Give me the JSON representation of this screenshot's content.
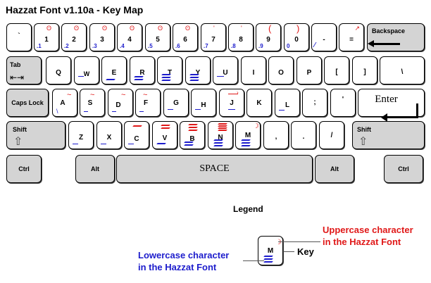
{
  "title": "Hazzat Font v1.10a - Key Map",
  "rows": {
    "number": [
      {
        "label": "`",
        "lower": "",
        "upper": ""
      },
      {
        "label": "1",
        "lower": ".1",
        "upper": "ʘ"
      },
      {
        "label": "2",
        "lower": ".2",
        "upper": "ʘ"
      },
      {
        "label": "3",
        "lower": ".3",
        "upper": "ʘ"
      },
      {
        "label": "4",
        "lower": ".4",
        "upper": "ʘ"
      },
      {
        "label": "5",
        "lower": ".5",
        "upper": "ʘ"
      },
      {
        "label": "6",
        "lower": ".6",
        "upper": "ʘ"
      },
      {
        "label": "7",
        "lower": ".7",
        "upper": "ʹ"
      },
      {
        "label": "8",
        "lower": ".8",
        "upper": "ʹ"
      },
      {
        "label": "9",
        "lower": ".9",
        "upper": "("
      },
      {
        "label": "0",
        "lower": "0",
        "upper": ")"
      },
      {
        "label": "-",
        "lower": "⁄",
        "upper": ""
      },
      {
        "label": "=",
        "lower": "",
        "upper": "↗"
      }
    ],
    "qwerty": [
      "Q",
      "W",
      "E",
      "R",
      "T",
      "Y",
      "U",
      "I",
      "O",
      "P",
      "[",
      "]",
      "\\"
    ],
    "home": [
      "A",
      "S",
      "D",
      "F",
      "G",
      "H",
      "J",
      "K",
      "L",
      ";",
      "'"
    ],
    "bottom": [
      "Z",
      "X",
      "C",
      "V",
      "B",
      "N",
      "M",
      ",",
      ".",
      "/"
    ]
  },
  "modifiers": {
    "backspace": "Backspace",
    "tab": "Tab",
    "caps_lock": "Caps Lock",
    "enter": "Enter",
    "shift_left": "Shift",
    "shift_right": "Shift",
    "ctrl_left": "Ctrl",
    "alt_left": "Alt",
    "space": "SPACE",
    "alt_right": "Alt",
    "ctrl_right": "Ctrl"
  },
  "legend": {
    "title": "Legend",
    "key_label": "M",
    "key_word": "Key",
    "upper_line1": "Uppercase character",
    "upper_line2": "in the Hazzat Font",
    "lower_line1": "Lowercase character",
    "lower_line2": "in the Hazzat Font"
  },
  "colors": {
    "uppercase": "#e01818",
    "lowercase": "#1c1ccc",
    "modifier_key": "#d4d4d4"
  }
}
